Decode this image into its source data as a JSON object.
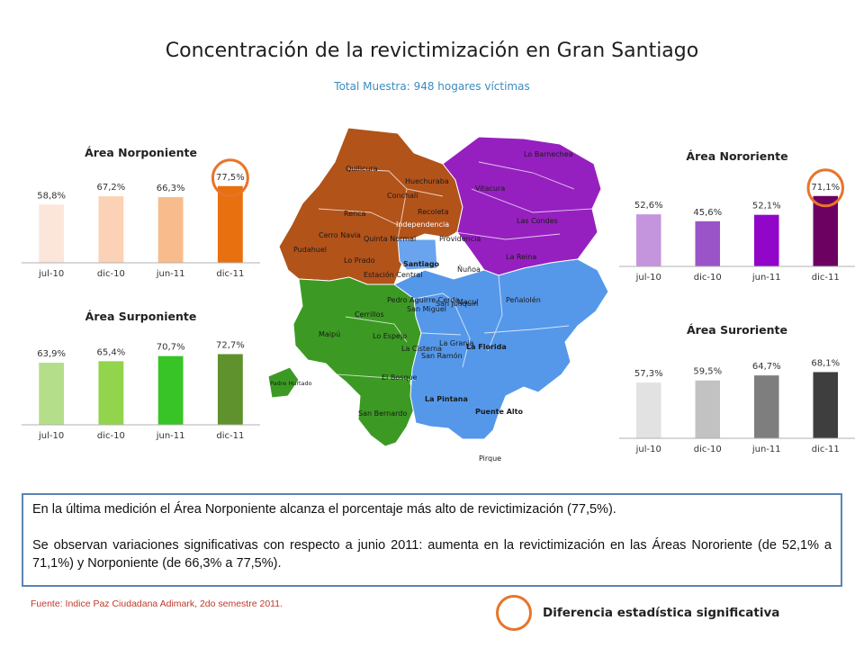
{
  "title": "Concentración de la revictimización en Gran Santiago",
  "subtitle": "Total Muestra: 948 hogares víctimas",
  "chart_data": [
    {
      "type": "bar",
      "title": "Área Norponiente",
      "categories": [
        "jul-10",
        "dic-10",
        "jun-11",
        "dic-11"
      ],
      "values": [
        58.8,
        67.2,
        66.3,
        77.5
      ],
      "value_labels": [
        "58,8%",
        "67,2%",
        "66,3%",
        "77,5%"
      ],
      "colors": [
        "#fce6da",
        "#fbd2b5",
        "#f8bc8c",
        "#e8700f"
      ],
      "highlight_index": 3,
      "ylim": [
        0,
        100
      ]
    },
    {
      "type": "bar",
      "title": "Área Nororiente",
      "categories": [
        "jul-10",
        "dic-10",
        "jun-11",
        "dic-11"
      ],
      "values": [
        52.6,
        45.6,
        52.1,
        71.1
      ],
      "value_labels": [
        "52,6%",
        "45,6%",
        "52,1%",
        "71,1%"
      ],
      "colors": [
        "#c495dd",
        "#9a54c8",
        "#9106c8",
        "#6c0161"
      ],
      "highlight_index": 3,
      "ylim": [
        0,
        100
      ]
    },
    {
      "type": "bar",
      "title": "Área Surponiente",
      "categories": [
        "jul-10",
        "dic-10",
        "jun-11",
        "dic-11"
      ],
      "values": [
        63.9,
        65.4,
        70.7,
        72.7
      ],
      "value_labels": [
        "63,9%",
        "65,4%",
        "70,7%",
        "72,7%"
      ],
      "colors": [
        "#b5de8a",
        "#92d44c",
        "#38c426",
        "#5f922c"
      ],
      "highlight_index": null,
      "ylim": [
        0,
        100
      ]
    },
    {
      "type": "bar",
      "title": "Área Suroriente",
      "categories": [
        "jul-10",
        "dic-10",
        "jun-11",
        "dic-11"
      ],
      "values": [
        57.3,
        59.5,
        64.7,
        68.1
      ],
      "value_labels": [
        "57,3%",
        "59,5%",
        "64,7%",
        "68,1%"
      ],
      "colors": [
        "#e2e2e2",
        "#c2c2c2",
        "#7e7e7e",
        "#3e3e3e"
      ],
      "highlight_index": null,
      "ylim": [
        0,
        100
      ]
    }
  ],
  "map": {
    "colors": {
      "norponiente": "#b2531a",
      "nororiente": "#9620bf",
      "surponiente": "#3c9a24",
      "suroriente": "#5598ea",
      "santiago": "#6aa4ee"
    },
    "labels": {
      "quilicura": "Quilicura",
      "huechuraba": "Huechuraba",
      "conchali": "Conchalí",
      "independencia": "Independencia",
      "recoleta": "Recoleta",
      "renca": "Renca",
      "cerro_navia": "Cerro Navia",
      "quinta_normal": "Quinta Normal",
      "lo_prado": "Lo Prado",
      "pudahuel": "Pudahuel",
      "estacion_central": "Estación Central",
      "santiago": "Santiago",
      "lo_barnechea": "Lo Barnechea",
      "vitacura": "Vitacura",
      "las_condes": "Las Condes",
      "providencia": "Providencia",
      "nunoa": "Ñuñoa",
      "la_reina": "La Reina",
      "penalolen": "Peñalolén",
      "macul": "Macul",
      "san_joaquin": "San Joaquín",
      "la_florida": "La Florida",
      "la_granja": "La Granja",
      "san_ramon": "San Ramón",
      "la_pintana": "La Pintana",
      "puente_alto": "Puente Alto",
      "pirque": "Pirque",
      "pedro_aguirre_cerda": "Pedro Aguirre Cerda",
      "cerrillos": "Cerrillos",
      "maipu": "Maipú",
      "lo_espejo": "Lo Espejo",
      "la_cisterna": "La Cisterna",
      "el_bosque": "El Bosque",
      "san_bernardo": "San Bernardo",
      "san_miguel": "San Miguel",
      "padre_hurtado": "Padre Hurtado"
    }
  },
  "notes": {
    "paragraph1": "En la última medición el Área Norponiente alcanza el porcentaje más alto de revictimización (77,5%).",
    "paragraph2": "Se observan variaciones significativas con respecto a junio 2011: aumenta en la revictimización en las Áreas Nororiente (de 52,1% a 71,1%) y Norponiente (de 66,3% a 77,5%)."
  },
  "source": "Fuente: Indice Paz Ciudadana Adimark, 2do semestre 2011.",
  "legend": {
    "circle_color": "#e8742b",
    "label": "Diferencia estadística significativa"
  }
}
